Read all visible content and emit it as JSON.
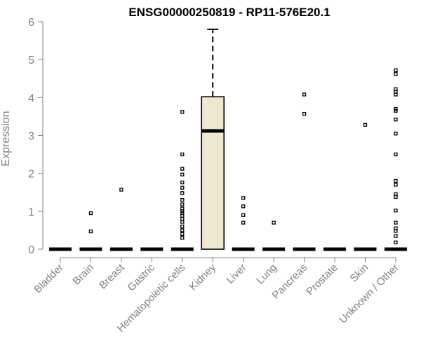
{
  "chart_data": {
    "type": "box",
    "title": "ENSG00000250819 - RP11-576E20.1",
    "xlabel": "",
    "ylabel": "Expression",
    "ylim": [
      0,
      6
    ],
    "yticks": [
      0,
      1,
      2,
      3,
      4,
      5,
      6
    ],
    "grid": false,
    "box_fill": "#EEE8D0",
    "stroke_color": "#000000",
    "axis_color": "#808080",
    "categories": [
      "Bladder",
      "Brain",
      "Breast",
      "Gastric",
      "Hematopoietic cells",
      "Kidney",
      "Liver",
      "Lung",
      "Pancreas",
      "Prostate",
      "Skin",
      "Unknown / Other"
    ],
    "boxes": [
      {
        "category": "Bladder",
        "q1": 0,
        "median": 0,
        "q3": 0,
        "whisker_low": 0,
        "whisker_high": 0,
        "outliers": []
      },
      {
        "category": "Brain",
        "q1": 0,
        "median": 0,
        "q3": 0,
        "whisker_low": 0,
        "whisker_high": 0,
        "outliers": [
          0.95,
          0.47
        ]
      },
      {
        "category": "Breast",
        "q1": 0,
        "median": 0,
        "q3": 0,
        "whisker_low": 0,
        "whisker_high": 0,
        "outliers": [
          1.57
        ]
      },
      {
        "category": "Gastric",
        "q1": 0,
        "median": 0,
        "q3": 0,
        "whisker_low": 0,
        "whisker_high": 0,
        "outliers": []
      },
      {
        "category": "Hematopoietic cells",
        "q1": 0,
        "median": 0,
        "q3": 0,
        "whisker_low": 0,
        "whisker_high": 0,
        "outliers": [
          3.62,
          2.5,
          2.12,
          1.97,
          1.76,
          1.62,
          1.48,
          1.3,
          1.18,
          1.07,
          1.0,
          0.95,
          0.88,
          0.8,
          0.72,
          0.6,
          0.5,
          0.4,
          0.3
        ]
      },
      {
        "category": "Kidney",
        "q1": 0,
        "median": 3.12,
        "q3": 4.02,
        "whisker_low": 0,
        "whisker_high": 5.8,
        "outliers": []
      },
      {
        "category": "Liver",
        "q1": 0,
        "median": 0,
        "q3": 0,
        "whisker_low": 0,
        "whisker_high": 0,
        "outliers": [
          1.35,
          1.13,
          0.9,
          0.7
        ]
      },
      {
        "category": "Lung",
        "q1": 0,
        "median": 0,
        "q3": 0,
        "whisker_low": 0,
        "whisker_high": 0,
        "outliers": [
          0.7
        ]
      },
      {
        "category": "Pancreas",
        "q1": 0,
        "median": 0,
        "q3": 0,
        "whisker_low": 0,
        "whisker_high": 0,
        "outliers": [
          4.08,
          3.57
        ]
      },
      {
        "category": "Prostate",
        "q1": 0,
        "median": 0,
        "q3": 0,
        "whisker_low": 0,
        "whisker_high": 0,
        "outliers": []
      },
      {
        "category": "Skin",
        "q1": 0,
        "median": 0,
        "q3": 0,
        "whisker_low": 0,
        "whisker_high": 0,
        "outliers": [
          3.28
        ]
      },
      {
        "category": "Unknown / Other",
        "q1": 0,
        "median": 0,
        "q3": 0,
        "whisker_low": 0,
        "whisker_high": 0,
        "outliers": [
          4.72,
          4.62,
          4.22,
          4.15,
          4.08,
          3.7,
          3.65,
          3.42,
          3.05,
          2.5,
          1.8,
          1.7,
          1.45,
          1.38,
          1.02,
          0.7,
          0.55,
          0.48,
          0.35,
          0.18
        ]
      }
    ]
  }
}
